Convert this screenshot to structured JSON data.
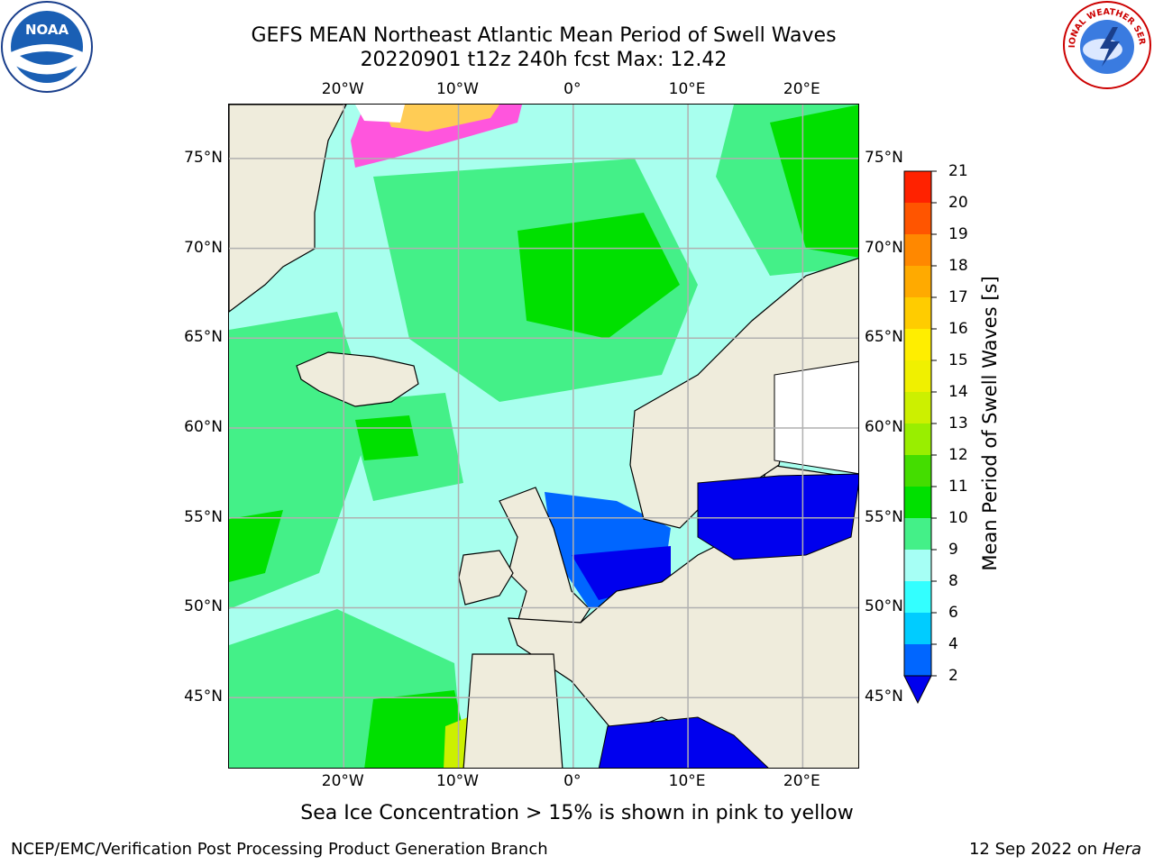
{
  "title_line1": "GEFS MEAN Northeast Atlantic Mean Period of Swell Waves",
  "title_line2": "20220901 t12z 240h fcst   Max: 12.42",
  "noaa_logo": {
    "text": "NOAA",
    "icon": "noaa-logo-icon"
  },
  "nws_logo": {
    "text": "NATIONAL WEATHER SERVICE",
    "icon": "nws-logo-icon"
  },
  "map": {
    "lon_range": [
      -30,
      25
    ],
    "lat_range": [
      41,
      78
    ],
    "lon_ticks": [
      {
        "value": -20,
        "label": "20°W"
      },
      {
        "value": -10,
        "label": "10°W"
      },
      {
        "value": 0,
        "label": "0°"
      },
      {
        "value": 10,
        "label": "10°E"
      },
      {
        "value": 20,
        "label": "20°E"
      }
    ],
    "lat_ticks": [
      {
        "value": 75,
        "label": "75°N"
      },
      {
        "value": 70,
        "label": "70°N"
      },
      {
        "value": 65,
        "label": "65°N"
      },
      {
        "value": 60,
        "label": "60°N"
      },
      {
        "value": 55,
        "label": "55°N"
      },
      {
        "value": 50,
        "label": "50°N"
      },
      {
        "value": 45,
        "label": "45°N"
      }
    ],
    "colors": {
      "land": "#efecdc",
      "ocean_base": "#a8ffee",
      "grid": "#b0b0b0"
    }
  },
  "colorbar": {
    "title": "Mean Period of Swell Waves [s]",
    "levels": [
      2,
      4,
      6,
      8,
      9,
      10,
      11,
      12,
      13,
      14,
      15,
      16,
      17,
      18,
      19,
      20,
      21
    ],
    "labels": [
      "2",
      "4",
      "6",
      "8",
      "9",
      "10",
      "11",
      "12",
      "13",
      "14",
      "15",
      "16",
      "17",
      "18",
      "19",
      "20",
      "21"
    ],
    "colors": [
      "#0066ff",
      "#00ccff",
      "#33ffff",
      "#a6fff5",
      "#44f088",
      "#00e000",
      "#44dd00",
      "#99ee00",
      "#ccf000",
      "#f0f000",
      "#ffee00",
      "#ffcc00",
      "#ffaa00",
      "#ff8800",
      "#ff5500",
      "#ff2200"
    ],
    "extend_color": "#0000ee"
  },
  "ice_note": "Sea Ice Concentration > 15% is shown in pink to yellow",
  "footer_left": "NCEP/EMC/Verification Post Processing Product Generation Branch",
  "footer_date": "12 Sep 2022 on",
  "footer_machine": "Hera"
}
